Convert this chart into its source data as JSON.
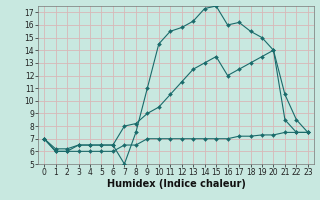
{
  "xlabel": "Humidex (Indice chaleur)",
  "bg_color": "#c8e8e0",
  "grid_color": "#d8b8b8",
  "line_color": "#1a6b6b",
  "line1_x": [
    0,
    1,
    2,
    3,
    4,
    5,
    6,
    7,
    8,
    9,
    10,
    11,
    12,
    13,
    14,
    15,
    16,
    17,
    18,
    19,
    20,
    21,
    22,
    23
  ],
  "line1_y": [
    7.0,
    6.0,
    6.0,
    6.5,
    6.5,
    6.5,
    6.5,
    5.0,
    7.5,
    11.0,
    14.5,
    15.5,
    15.8,
    16.3,
    17.3,
    17.5,
    16.0,
    16.2,
    15.5,
    15.0,
    14.0,
    10.5,
    8.5,
    7.5
  ],
  "line2_x": [
    0,
    1,
    2,
    3,
    4,
    5,
    6,
    7,
    8,
    9,
    10,
    11,
    12,
    13,
    14,
    15,
    16,
    17,
    18,
    19,
    20,
    21,
    22,
    23
  ],
  "line2_y": [
    7.0,
    6.2,
    6.2,
    6.5,
    6.5,
    6.5,
    6.5,
    8.0,
    8.2,
    9.0,
    9.5,
    10.5,
    11.5,
    12.5,
    13.0,
    13.5,
    12.0,
    12.5,
    13.0,
    13.5,
    14.0,
    8.5,
    7.5,
    7.5
  ],
  "line3_x": [
    0,
    1,
    2,
    3,
    4,
    5,
    6,
    7,
    8,
    9,
    10,
    11,
    12,
    13,
    14,
    15,
    16,
    17,
    18,
    19,
    20,
    21,
    22,
    23
  ],
  "line3_y": [
    7.0,
    6.0,
    6.0,
    6.0,
    6.0,
    6.0,
    6.0,
    6.5,
    6.5,
    7.0,
    7.0,
    7.0,
    7.0,
    7.0,
    7.0,
    7.0,
    7.0,
    7.2,
    7.2,
    7.3,
    7.3,
    7.5,
    7.5,
    7.5
  ],
  "xlim": [
    -0.5,
    23.5
  ],
  "ylim": [
    5,
    17.5
  ],
  "yticks": [
    5,
    6,
    7,
    8,
    9,
    10,
    11,
    12,
    13,
    14,
    15,
    16,
    17
  ],
  "xticks": [
    0,
    1,
    2,
    3,
    4,
    5,
    6,
    7,
    8,
    9,
    10,
    11,
    12,
    13,
    14,
    15,
    16,
    17,
    18,
    19,
    20,
    21,
    22,
    23
  ],
  "tick_fontsize": 5.5,
  "label_fontsize": 7.0
}
